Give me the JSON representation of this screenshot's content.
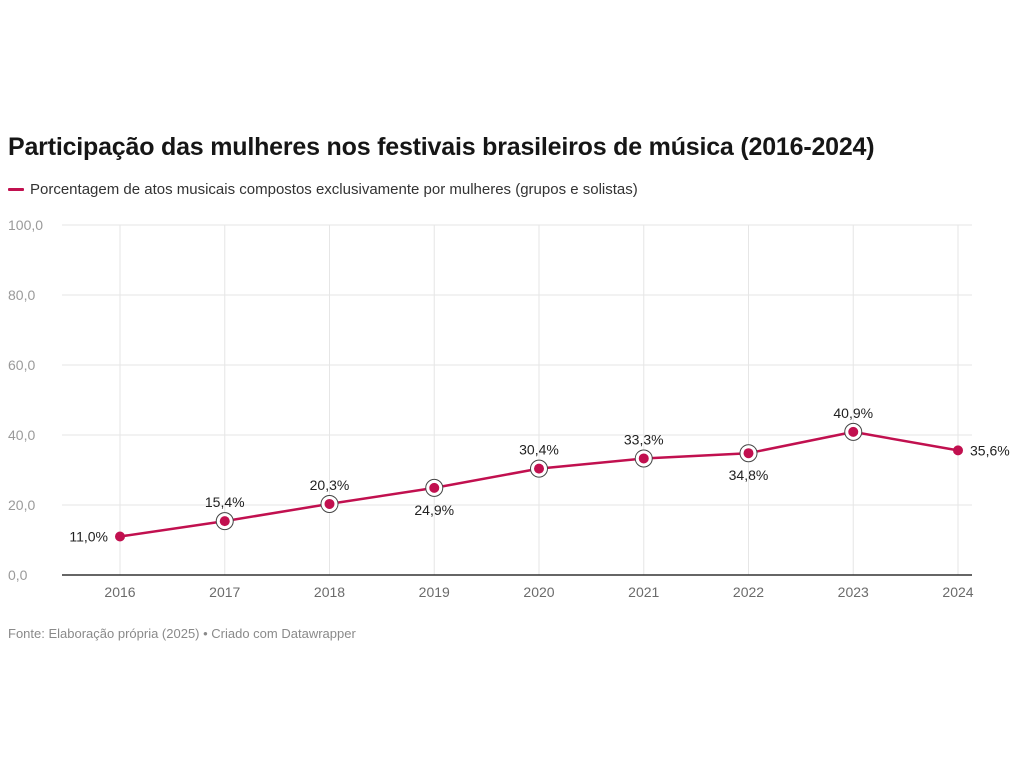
{
  "chart_data": {
    "type": "line",
    "title": "Participação das mulheres nos festivais brasileiros de música (2016-2024)",
    "categories": [
      "2016",
      "2017",
      "2018",
      "2019",
      "2020",
      "2021",
      "2022",
      "2023",
      "2024"
    ],
    "series": [
      {
        "name": "Porcentagem de atos musicais compostos exclusivamente por mulheres (grupos e solistas)",
        "values": [
          11.0,
          15.4,
          20.3,
          24.9,
          30.4,
          33.3,
          34.8,
          40.9,
          35.6
        ],
        "labels": [
          "11,0%",
          "15,4%",
          "20,3%",
          "24,9%",
          "30,4%",
          "33,3%",
          "34,8%",
          "40,9%",
          "35,6%"
        ]
      }
    ],
    "ylim": [
      0,
      100
    ],
    "yticks": [
      0,
      20,
      40,
      60,
      80,
      100
    ],
    "ytick_labels": [
      "0,0",
      "20,0",
      "40,0",
      "60,0",
      "80,0",
      "100,0"
    ],
    "grid": true,
    "legend_position": "top-left",
    "source": "Fonte: Elaboração própria (2025) • Criado com Datawrapper"
  },
  "colors": {
    "series": "#c1104f",
    "grid": "#e6e6e6",
    "axis": "#333333"
  }
}
